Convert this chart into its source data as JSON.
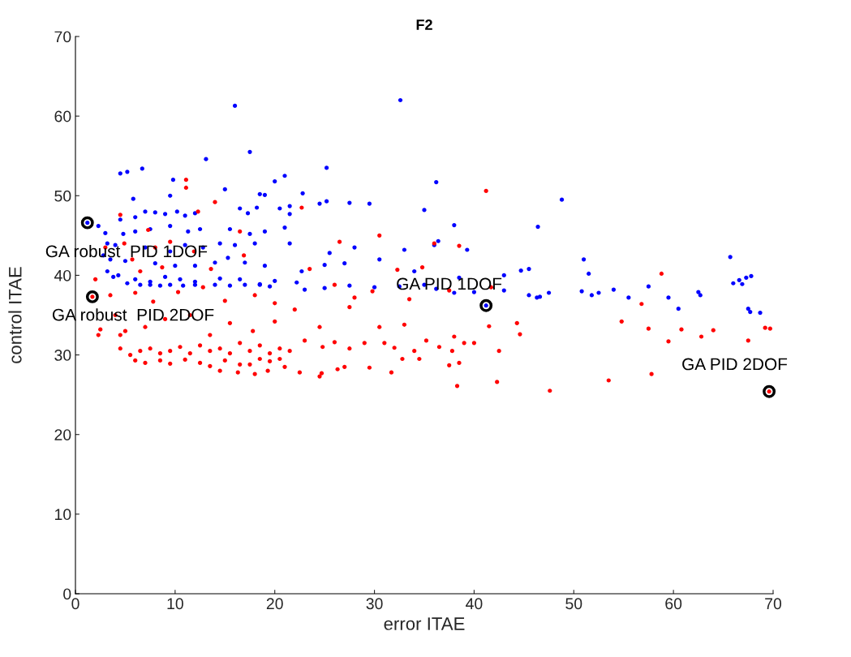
{
  "chart_data": {
    "type": "scatter",
    "title": "F2",
    "xlabel": "error ITAE",
    "ylabel": "control ITAE",
    "xlim": [
      0,
      70
    ],
    "ylim": [
      0,
      70
    ],
    "xticks": [
      0,
      10,
      20,
      30,
      40,
      50,
      60,
      70
    ],
    "yticks": [
      0,
      10,
      20,
      30,
      40,
      50,
      60,
      70
    ],
    "grid": false,
    "marker": "circle",
    "series": [
      {
        "color": "#0000ff",
        "x": [
          16,
          32.6,
          13.1,
          17.5,
          4.5,
          5.2,
          6.7,
          25.2,
          20,
          21,
          9.8,
          36.2,
          15,
          5.8,
          9.5,
          18.5,
          19,
          22.8,
          24.5,
          25.2,
          27.5,
          29.5,
          35,
          48.8,
          21.5,
          21.5,
          7,
          8,
          9,
          10.2,
          11,
          12,
          6,
          4.5,
          16.5,
          17.3,
          18.2,
          20.5,
          38,
          46.4,
          3,
          4.8,
          6,
          7.5,
          9.5,
          11.3,
          12.5,
          15.5,
          17.5,
          19,
          21,
          3.2,
          4,
          7,
          9.5,
          11,
          12.8,
          14.5,
          16,
          18,
          21.5,
          25.5,
          28,
          33,
          36,
          36.4,
          39.3,
          51,
          65.7,
          2.8,
          3.5,
          5,
          8,
          10,
          12,
          14,
          15.3,
          17,
          19,
          22.7,
          25,
          27,
          30.5,
          34,
          38.5,
          43,
          44.7,
          45.5,
          51.5,
          3.2,
          4.3,
          6,
          7.5,
          9,
          10.5,
          12,
          14.5,
          16.5,
          18.5,
          20,
          22.2,
          3.8,
          5.2,
          6.5,
          7.5,
          8.5,
          9.5,
          10.8,
          12,
          14,
          15.5,
          17,
          18.5,
          19.5,
          23,
          25,
          27.5,
          30,
          32.5,
          35,
          36.2,
          38,
          40,
          43,
          45.5,
          46.3,
          46.6,
          47.5,
          50.8,
          51.8,
          52.5,
          54,
          55.5,
          57.5,
          59.5,
          60.5,
          62.7,
          62.5,
          66,
          66.6,
          67.3,
          67.8,
          66.9,
          67.5,
          67.7,
          68.7,
          2.3,
          1.2,
          41.2
        ],
        "values": [
          61.3,
          62,
          54.6,
          55.5,
          52.8,
          53,
          53.4,
          53.5,
          51.8,
          52.5,
          52,
          51.7,
          50.8,
          49.6,
          50,
          50.2,
          50.1,
          50.3,
          49,
          49.3,
          49.1,
          49,
          48.2,
          49.5,
          48.7,
          47.7,
          48,
          47.9,
          47.7,
          48,
          47.5,
          47.8,
          47.3,
          47,
          48.4,
          47.8,
          48.5,
          48.4,
          46.3,
          46.1,
          45.3,
          45.2,
          45.5,
          45.8,
          46.2,
          45.5,
          45.8,
          45.8,
          45.2,
          45.5,
          46,
          44,
          43.8,
          43.5,
          43,
          43.8,
          43.5,
          44,
          43.8,
          44,
          44,
          42.8,
          43.5,
          43.2,
          43.8,
          44.3,
          43.2,
          42,
          42.3,
          42.5,
          42,
          41.8,
          41.5,
          41.2,
          41.2,
          41.6,
          42.2,
          41.6,
          41.2,
          40.5,
          41.3,
          41.5,
          42,
          40.5,
          39.7,
          40,
          40.6,
          40.8,
          40.2,
          40.5,
          40,
          39.5,
          39.2,
          39.8,
          39.5,
          39.2,
          39.6,
          39.5,
          38.9,
          39.3,
          39.1,
          39.8,
          39,
          38.8,
          38.8,
          38.7,
          38.8,
          38.7,
          38.8,
          38.8,
          38.7,
          38.8,
          38.8,
          38.6,
          38.2,
          38.4,
          38.7,
          38.5,
          38.6,
          38.8,
          38.3,
          37.8,
          37.9,
          38.1,
          37.5,
          37.2,
          37.3,
          37.8,
          38,
          37.5,
          37.8,
          38.2,
          37.2,
          38.6,
          37.2,
          35.8,
          37.5,
          37.9,
          39,
          39.4,
          39.7,
          39.9,
          38.9,
          35.8,
          35.4,
          35.3,
          46.2,
          46.6,
          36.2
        ]
      },
      {
        "color": "#ff0000",
        "x": [
          11.1,
          11.1,
          14,
          4.5,
          22.7,
          41.2,
          12.3,
          4.9,
          5.7,
          3,
          7.3,
          9.5,
          8,
          11.9,
          16.5,
          16.9,
          6.5,
          2,
          8.7,
          13.6,
          3.5,
          6,
          7.8,
          10.3,
          12.8,
          15,
          18,
          20,
          23.5,
          26,
          28,
          29.8,
          32.3,
          33.5,
          34.8,
          37.5,
          26.5,
          30.5,
          36,
          38.5,
          41.7,
          56.8,
          58.8,
          2.5,
          2.3,
          4,
          5,
          7,
          9,
          11.5,
          13.5,
          15.5,
          17.8,
          20,
          22,
          24.5,
          27.5,
          30.5,
          33,
          35.2,
          38,
          40,
          41.5,
          44.3,
          44.6,
          54.8,
          57.5,
          59.5,
          60.8,
          62.8,
          64,
          67.5,
          69.2,
          69.7,
          4.5,
          5.5,
          6.5,
          7.5,
          8.5,
          9.5,
          10.5,
          11.5,
          12.5,
          13.5,
          14.5,
          15.5,
          16.5,
          17.5,
          18.5,
          19.5,
          20.5,
          21.5,
          23,
          24.8,
          26,
          27.5,
          29,
          31,
          32,
          34,
          36.5,
          37.8,
          39,
          6,
          7,
          8.5,
          9.5,
          11,
          12.5,
          13.5,
          15,
          16.5,
          17.5,
          18.5,
          19.5,
          20.5,
          14.5,
          16.3,
          18,
          19.3,
          21,
          22.5,
          24.5,
          24.7,
          26.3,
          27,
          29.5,
          31.7,
          32.8,
          34.5,
          37.5,
          38.5,
          38.3,
          42.3,
          47.6,
          53.5,
          57.8,
          42.5,
          4.5,
          1.7,
          69.6
        ],
        "values": [
          52,
          51,
          49.2,
          47.6,
          48.5,
          50.6,
          48,
          44,
          42,
          43.5,
          45.7,
          44.2,
          43.5,
          43,
          45.5,
          42.5,
          40.5,
          39.5,
          41,
          40.8,
          37.5,
          37.8,
          36.7,
          37.9,
          38.5,
          36.8,
          37.5,
          36.5,
          40.8,
          38.8,
          37.2,
          38,
          40.7,
          37,
          41,
          38.1,
          44.2,
          45,
          44,
          43.7,
          38.5,
          36.4,
          40.2,
          33.2,
          32.5,
          35,
          33,
          33.5,
          34.5,
          35,
          32.5,
          34,
          33,
          34.2,
          35.7,
          33.5,
          36,
          33.5,
          33.8,
          31.8,
          32.3,
          31.5,
          33.6,
          34,
          32.6,
          34.2,
          33.3,
          31.7,
          33.2,
          32.3,
          33.1,
          31.8,
          33.4,
          33.3,
          30.8,
          30,
          30.5,
          30.8,
          30.2,
          30.5,
          31,
          30.2,
          31.2,
          30.5,
          30.8,
          30.2,
          31.5,
          30.5,
          31.2,
          30.2,
          30.8,
          30.5,
          31.8,
          31,
          31.6,
          30.8,
          31.5,
          31.5,
          30.9,
          30.5,
          31,
          30.5,
          31.5,
          29.3,
          29,
          29.3,
          28.9,
          29.4,
          29,
          28.6,
          29.3,
          28.8,
          28.8,
          29.5,
          29.2,
          29.5,
          28,
          27.8,
          27.6,
          28,
          28.5,
          27.8,
          27.3,
          27.7,
          28.2,
          28.5,
          28.4,
          27.8,
          29.5,
          29.5,
          28.7,
          29,
          26.1,
          26.6,
          25.5,
          26.8,
          27.6,
          30.5,
          32.5,
          37.3,
          25.4
        ]
      }
    ],
    "annotations": [
      {
        "text": "GA robust  PID 1DOF",
        "x": 1.2,
        "y": 46.6
      },
      {
        "text": "GA robust  PID 2DOF",
        "x": 1.7,
        "y": 37.3
      },
      {
        "text": "GA PID 1DOF",
        "x": 41.2,
        "y": 36.2
      },
      {
        "text": "GA PID 2DOF",
        "x": 69.6,
        "y": 25.4
      }
    ]
  }
}
